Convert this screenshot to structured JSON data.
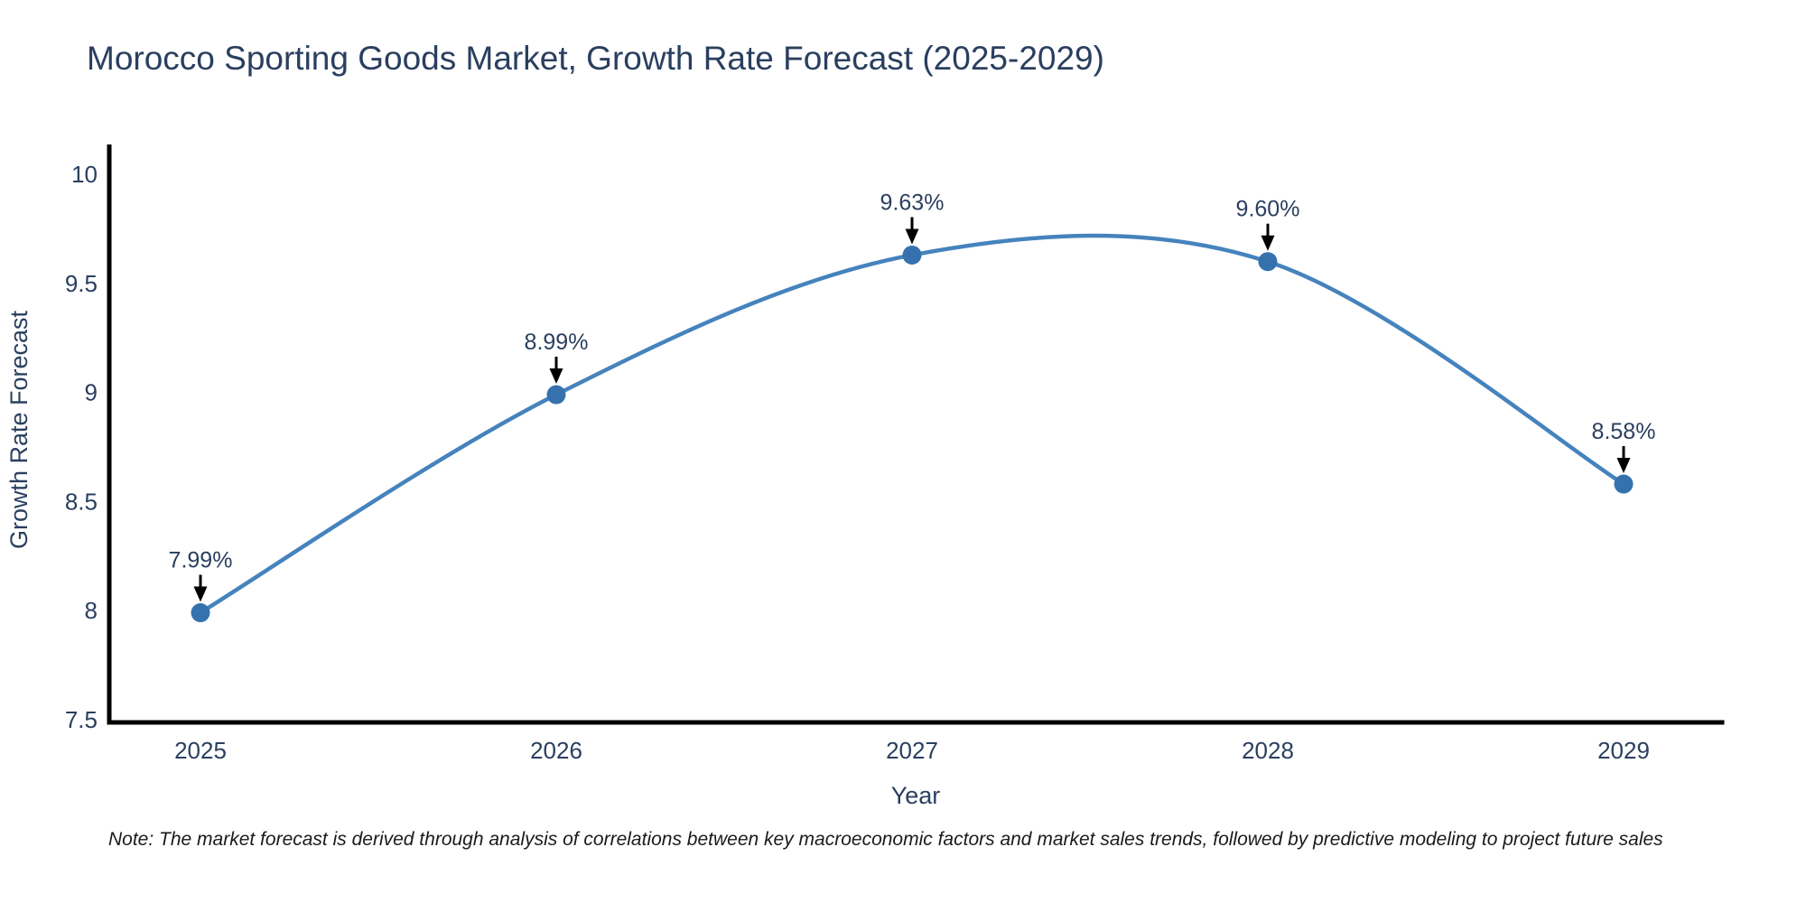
{
  "chart_data": {
    "type": "line",
    "title": "Morocco Sporting Goods Market, Growth Rate Forecast (2025-2029)",
    "categories": [
      "2025",
      "2026",
      "2027",
      "2028",
      "2029"
    ],
    "values": [
      7.99,
      8.99,
      9.63,
      9.6,
      8.58
    ],
    "point_labels": [
      "7.99%",
      "8.99%",
      "9.63%",
      "9.60%",
      "8.58%"
    ],
    "xlabel": "Year",
    "ylabel": "Growth Rate Forecast",
    "y_ticks": [
      7.5,
      8,
      8.5,
      9,
      9.5,
      10
    ],
    "ylim": [
      7.49,
      10.14
    ],
    "line_shape": "spline",
    "grid": false,
    "legend": false,
    "line_color": "#4583bd",
    "marker_color": "#3572ad",
    "arrow_color": "#000000",
    "axis_color": "#000000",
    "text_color": "#2a3f5f"
  },
  "note": {
    "text": "Note: The market forecast is derived through analysis of correlations between key macroeconomic factors and market sales trends, followed by predictive modeling to project future sales"
  }
}
